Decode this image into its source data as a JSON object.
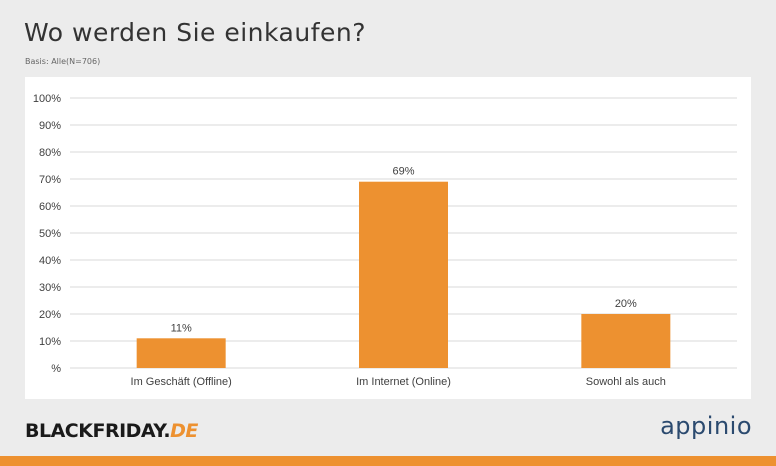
{
  "header": {
    "title": "Wo werden Sie einkaufen?",
    "subtitle": "Basis: Alle(N=706)"
  },
  "colors": {
    "bar": "#ed9130",
    "background": "#ececec",
    "panel": "#ffffff",
    "accent": "#ed9130",
    "brand_right": "#2b4a6f"
  },
  "chart_data": {
    "type": "bar",
    "title": "Wo werden Sie einkaufen?",
    "categories": [
      "Im Geschäft (Offline)",
      "Im Internet (Online)",
      "Sowohl als auch"
    ],
    "values": [
      11,
      69,
      20
    ],
    "data_labels": [
      "11%",
      "69%",
      "20%"
    ],
    "ylim": [
      0,
      100
    ],
    "yticks": [
      0,
      10,
      20,
      30,
      40,
      50,
      60,
      70,
      80,
      90,
      100
    ],
    "ytick_labels": [
      "%",
      "10%",
      "20%",
      "30%",
      "40%",
      "50%",
      "60%",
      "70%",
      "80%",
      "90%",
      "100%"
    ],
    "grid": true,
    "legend": "none"
  },
  "footer": {
    "logo_left_main": "BLACKFRIDAY.",
    "logo_left_accent": "DE",
    "logo_right": "appinio"
  }
}
